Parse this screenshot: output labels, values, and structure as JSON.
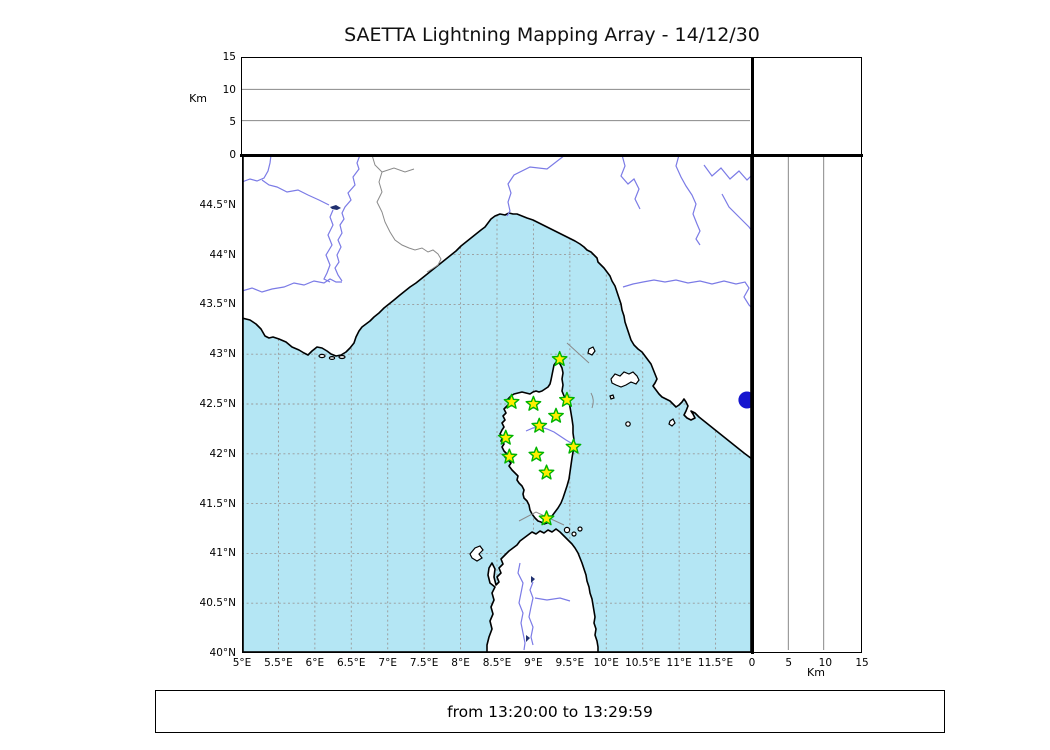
{
  "title": "SAETTA Lightning Mapping Array - 14/12/30",
  "time_caption": "from 13:20:00 to 13:29:59",
  "map_config": {
    "lon_min": 5,
    "lon_max": 12,
    "lat_min": 40,
    "lat_max": 45,
    "grid_step": 0.5
  },
  "map_axes": {
    "lon_ticks": [
      {
        "lon": 5.0,
        "label": "5°E"
      },
      {
        "lon": 5.5,
        "label": "5.5°E"
      },
      {
        "lon": 6.0,
        "label": "6°E"
      },
      {
        "lon": 6.5,
        "label": "6.5°E"
      },
      {
        "lon": 7.0,
        "label": "7°E"
      },
      {
        "lon": 7.5,
        "label": "7.5°E"
      },
      {
        "lon": 8.0,
        "label": "8°E"
      },
      {
        "lon": 8.5,
        "label": "8.5°E"
      },
      {
        "lon": 9.0,
        "label": "9°E"
      },
      {
        "lon": 9.5,
        "label": "9.5°E"
      },
      {
        "lon": 10.0,
        "label": "10°E"
      },
      {
        "lon": 10.5,
        "label": "10.5°E"
      },
      {
        "lon": 11.0,
        "label": "11°E"
      },
      {
        "lon": 11.5,
        "label": "11.5°E"
      }
    ],
    "lat_ticks": [
      {
        "lat": 44.5,
        "label": "44.5°N"
      },
      {
        "lat": 44.0,
        "label": "44°N"
      },
      {
        "lat": 43.5,
        "label": "43.5°N"
      },
      {
        "lat": 43.0,
        "label": "43°N"
      },
      {
        "lat": 42.5,
        "label": "42.5°N"
      },
      {
        "lat": 42.0,
        "label": "42°N"
      },
      {
        "lat": 41.5,
        "label": "41.5°N"
      },
      {
        "lat": 41.0,
        "label": "41°N"
      },
      {
        "lat": 40.5,
        "label": "40.5°N"
      },
      {
        "lat": 40.0,
        "label": "40°N"
      }
    ]
  },
  "alt_axis": {
    "label": "Km",
    "max": 15,
    "ticks": [
      0,
      5,
      10,
      15
    ],
    "gridlines": [
      5,
      10
    ]
  },
  "stations": [
    {
      "lon": 9.36,
      "lat": 42.95
    },
    {
      "lon": 8.7,
      "lat": 42.52
    },
    {
      "lon": 9.0,
      "lat": 42.5
    },
    {
      "lon": 9.46,
      "lat": 42.54
    },
    {
      "lon": 9.31,
      "lat": 42.38
    },
    {
      "lon": 9.08,
      "lat": 42.28
    },
    {
      "lon": 8.62,
      "lat": 42.16
    },
    {
      "lon": 9.55,
      "lat": 42.07
    },
    {
      "lon": 9.04,
      "lat": 41.99
    },
    {
      "lon": 8.67,
      "lat": 41.97
    },
    {
      "lon": 9.18,
      "lat": 41.81
    },
    {
      "lon": 9.18,
      "lat": 41.35
    }
  ],
  "event_dot": {
    "lon": 11.93,
    "lat": 42.54,
    "color": "#1616CF"
  },
  "colors": {
    "sea": "#B4E6F4",
    "land": "#FFFFFF",
    "coast": "#000000",
    "river": "#7B7BE6",
    "border_line": "#8a8a8a",
    "grid": "#999999",
    "station_fill": "#FFEE00",
    "station_stroke": "#00B400"
  },
  "chart_data": {
    "type": "scatter",
    "title": "SAETTA Lightning Mapping Array - 14/12/30",
    "xlabel_units": "°E",
    "ylabel_units": "°N",
    "x_range": [
      5,
      12
    ],
    "y_range": [
      40,
      45
    ],
    "altitude_axis": {
      "label": "Km",
      "range": [
        0,
        15
      ],
      "ticks": [
        0,
        5,
        10,
        15
      ]
    },
    "series": [
      {
        "name": "LMA stations (star markers)",
        "x": [
          9.36,
          8.7,
          9.0,
          9.46,
          9.31,
          9.08,
          8.62,
          9.55,
          9.04,
          8.67,
          9.18,
          9.18
        ],
        "y": [
          42.95,
          42.52,
          42.5,
          42.54,
          42.38,
          42.28,
          42.16,
          42.07,
          41.99,
          41.97,
          41.81,
          41.35
        ]
      },
      {
        "name": "event point (blue dot)",
        "x": [
          11.93
        ],
        "y": [
          42.54
        ]
      }
    ],
    "annotations": [
      "from 13:20:00 to 13:29:59"
    ],
    "grid": true
  }
}
